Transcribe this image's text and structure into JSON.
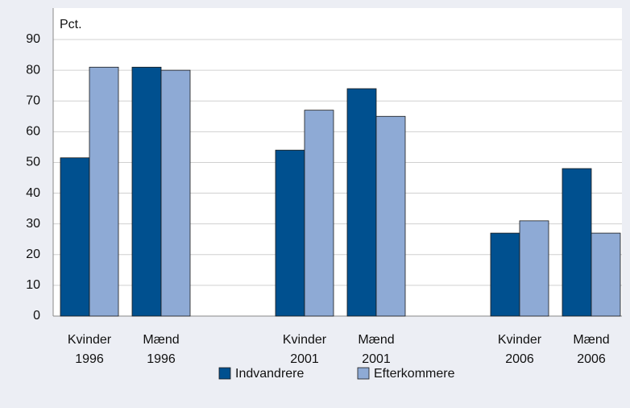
{
  "chart_data": {
    "type": "bar",
    "y_label": "Pct.",
    "categories": [
      "Kvinder\n1996",
      "Mænd\n1996",
      "Kvinder\n2001",
      "Mænd\n2001",
      "Kvinder\n2006",
      "Mænd\n2006"
    ],
    "series": [
      {
        "name": "Indvandrere",
        "color": "#00508f",
        "values": [
          51.5,
          81,
          54,
          74,
          27,
          48
        ]
      },
      {
        "name": "Efterkommere",
        "color": "#8eaad5",
        "values": [
          81,
          80,
          67,
          65,
          31,
          27
        ]
      }
    ],
    "ylim": [
      0,
      90
    ],
    "yticks": [
      0,
      10,
      20,
      30,
      40,
      50,
      60,
      70,
      80,
      90
    ],
    "grid": true
  }
}
